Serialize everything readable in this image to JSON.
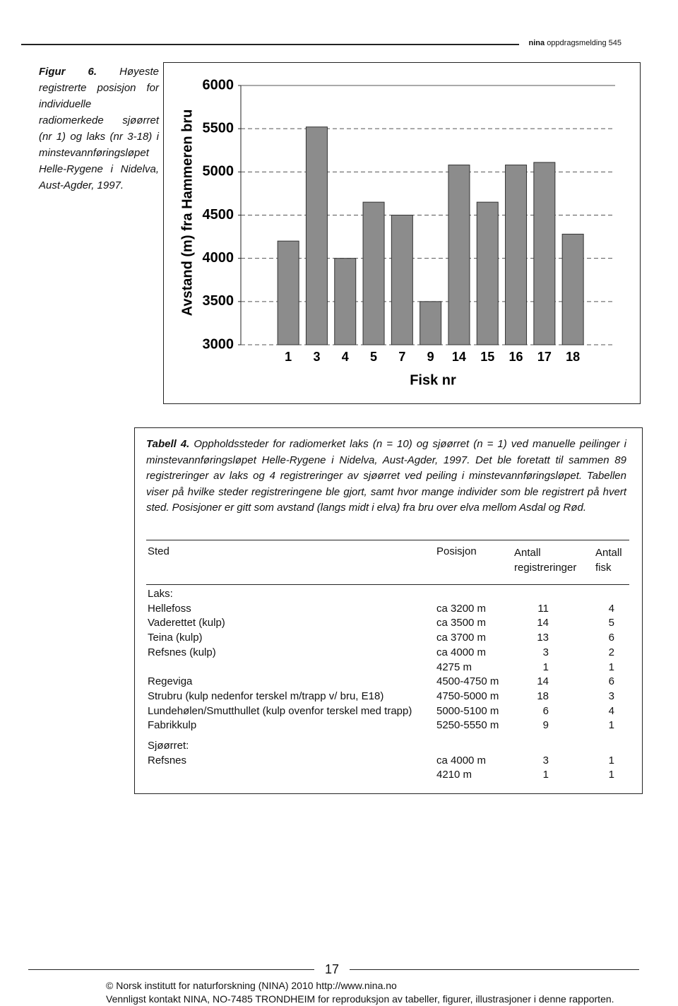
{
  "header": {
    "brand": "nina",
    "text": "oppdragsmelding 545"
  },
  "figure": {
    "label": "Figur 6.",
    "caption": "Høyeste registrerte posisjon for individuelle radiomerkede sjøørret (nr 1) og laks (nr 3-18) i minstevannføringsløpet Helle-Rygene i Nidelva, Aust-Agder, 1997."
  },
  "chart_data": {
    "type": "bar",
    "y_label": "Avstand (m) fra Hammeren bru",
    "x_label": "Fisk nr",
    "categories": [
      "1",
      "3",
      "4",
      "5",
      "7",
      "9",
      "14",
      "15",
      "16",
      "17",
      "18"
    ],
    "values": [
      4200,
      5520,
      4000,
      4650,
      4500,
      3500,
      5080,
      4650,
      5080,
      5110,
      4280
    ],
    "color": "#8c8c8c",
    "ylim": [
      3000,
      6000
    ],
    "yticks": [
      3000,
      3500,
      4000,
      4500,
      5000,
      5500,
      6000
    ],
    "grid": true
  },
  "table_caption": {
    "label": "Tabell 4.",
    "text": "Oppholdssteder for radiomerket laks (n = 10) og sjøørret (n = 1) ved manuelle peilinger i minstevannføringsløpet Helle-Rygene i Nidelva, Aust-Agder, 1997. Det ble foretatt til sammen 89 registreringer av laks og 4 registreringer av sjøørret ved peiling i minstevannføringsløpet. Tabellen viser på hvilke steder registreringene ble gjort, samt hvor mange individer som ble registrert på hvert sted. Posisjoner er gitt som avstand (langs midt i elva) fra bru over elva mellom Asdal og Rød."
  },
  "table": {
    "columns": [
      "Sted",
      "Posisjon",
      "Antall registreringer",
      "Antall fisk"
    ],
    "groups": [
      {
        "name": "Laks:",
        "rows": [
          {
            "sted": "Hellefoss",
            "posisjon": "ca 3200 m",
            "registreringer": 11,
            "fisk": 4
          },
          {
            "sted": "Vaderettet (kulp)",
            "posisjon": "ca 3500 m",
            "registreringer": 14,
            "fisk": 5
          },
          {
            "sted": "Teina (kulp)",
            "posisjon": "ca 3700 m",
            "registreringer": 13,
            "fisk": 6
          },
          {
            "sted": "Refsnes (kulp)",
            "posisjon": "ca 4000 m",
            "registreringer": 3,
            "fisk": 2
          },
          {
            "posisjon": "4275 m",
            "registreringer": 1,
            "fisk": 1
          },
          {
            "sted": "Regeviga",
            "posisjon": "4500-4750 m",
            "registreringer": 14,
            "fisk": 6
          },
          {
            "sted": "Strubru (kulp nedenfor terskel m/trapp v/ bru, E18)",
            "posisjon": "4750-5000 m",
            "registreringer": 18,
            "fisk": 3
          },
          {
            "sted": "Lundehølen/Smutthullet (kulp ovenfor terskel med trapp)",
            "posisjon": "5000-5100 m",
            "registreringer": 6,
            "fisk": 4
          },
          {
            "sted": "Fabrikkulp",
            "posisjon": "5250-5550 m",
            "registreringer": 9,
            "fisk": 1
          }
        ]
      },
      {
        "name": "Sjøørret:",
        "rows": [
          {
            "sted": "Refsnes",
            "posisjon": "ca 4000 m",
            "registreringer": 3,
            "fisk": 1
          },
          {
            "posisjon": "4210 m",
            "registreringer": 1,
            "fisk": 1
          }
        ]
      }
    ]
  },
  "footer": {
    "page": "17",
    "copyright": "© Norsk institutt for naturforskning (NINA) 2010 http://www.nina.no",
    "notice": "Vennligst kontakt NINA, NO-7485 TRONDHEIM for reproduksjon av tabeller, figurer, illustrasjoner i denne rapporten."
  }
}
